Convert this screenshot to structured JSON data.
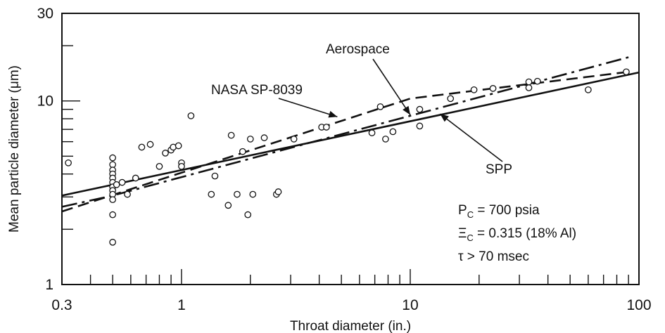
{
  "chart_data": {
    "type": "scatter",
    "title": "",
    "xlabel": "Throat diameter (in.)",
    "ylabel": "Mean particle diameter (μm)",
    "xscale": "log",
    "yscale": "log",
    "xlim": [
      0.3,
      100
    ],
    "ylim": [
      1,
      30
    ],
    "x_tick_labels": [
      {
        "value": 0.3,
        "label": "0.3"
      },
      {
        "value": 1,
        "label": "1"
      },
      {
        "value": 10,
        "label": "10"
      },
      {
        "value": 100,
        "label": "100"
      }
    ],
    "y_tick_labels": [
      {
        "value": 1,
        "label": "1"
      },
      {
        "value": 10,
        "label": "10"
      },
      {
        "value": 30,
        "label": "30"
      }
    ],
    "grid": false,
    "points": [
      {
        "x": 0.32,
        "y": 4.6
      },
      {
        "x": 0.5,
        "y": 4.9
      },
      {
        "x": 0.5,
        "y": 4.5
      },
      {
        "x": 0.5,
        "y": 4.2
      },
      {
        "x": 0.5,
        "y": 4.0
      },
      {
        "x": 0.5,
        "y": 3.8
      },
      {
        "x": 0.5,
        "y": 3.6
      },
      {
        "x": 0.5,
        "y": 3.4
      },
      {
        "x": 0.5,
        "y": 3.25
      },
      {
        "x": 0.5,
        "y": 3.1
      },
      {
        "x": 0.5,
        "y": 2.9
      },
      {
        "x": 0.5,
        "y": 2.4
      },
      {
        "x": 0.5,
        "y": 1.7
      },
      {
        "x": 0.52,
        "y": 3.5
      },
      {
        "x": 0.55,
        "y": 3.6
      },
      {
        "x": 0.58,
        "y": 3.1
      },
      {
        "x": 0.63,
        "y": 3.8
      },
      {
        "x": 0.67,
        "y": 5.6
      },
      {
        "x": 0.73,
        "y": 5.8
      },
      {
        "x": 0.8,
        "y": 4.4
      },
      {
        "x": 0.85,
        "y": 5.2
      },
      {
        "x": 0.9,
        "y": 5.4
      },
      {
        "x": 0.92,
        "y": 5.6
      },
      {
        "x": 0.97,
        "y": 5.7
      },
      {
        "x": 1.0,
        "y": 4.6
      },
      {
        "x": 1.0,
        "y": 4.4
      },
      {
        "x": 1.1,
        "y": 8.3
      },
      {
        "x": 1.35,
        "y": 3.1
      },
      {
        "x": 1.4,
        "y": 3.9
      },
      {
        "x": 1.6,
        "y": 2.7
      },
      {
        "x": 1.65,
        "y": 6.5
      },
      {
        "x": 1.75,
        "y": 3.1
      },
      {
        "x": 1.85,
        "y": 5.3
      },
      {
        "x": 1.95,
        "y": 2.4
      },
      {
        "x": 2.0,
        "y": 6.2
      },
      {
        "x": 2.05,
        "y": 3.1
      },
      {
        "x": 2.3,
        "y": 6.3
      },
      {
        "x": 2.6,
        "y": 3.1
      },
      {
        "x": 2.65,
        "y": 3.2
      },
      {
        "x": 3.1,
        "y": 6.2
      },
      {
        "x": 4.1,
        "y": 7.2
      },
      {
        "x": 4.3,
        "y": 7.2
      },
      {
        "x": 6.8,
        "y": 6.7
      },
      {
        "x": 7.4,
        "y": 9.3
      },
      {
        "x": 7.8,
        "y": 6.2
      },
      {
        "x": 8.4,
        "y": 6.8
      },
      {
        "x": 11.0,
        "y": 9.0
      },
      {
        "x": 11.0,
        "y": 7.3
      },
      {
        "x": 15.0,
        "y": 10.3
      },
      {
        "x": 19.0,
        "y": 11.5
      },
      {
        "x": 23.0,
        "y": 11.7
      },
      {
        "x": 33.0,
        "y": 11.8
      },
      {
        "x": 33.0,
        "y": 12.7
      },
      {
        "x": 36.0,
        "y": 12.8
      },
      {
        "x": 60.0,
        "y": 11.5
      },
      {
        "x": 88.0,
        "y": 14.4
      }
    ],
    "series": [
      {
        "name": "SPP",
        "style": "solid",
        "x": [
          0.3,
          100
        ],
        "y": [
          3.05,
          14.3
        ]
      },
      {
        "name": "Aerospace",
        "style": "long-dash-dot",
        "x": [
          0.3,
          0.5,
          90
        ],
        "y": [
          2.65,
          3.05,
          17.3
        ]
      },
      {
        "name": "NASA SP-8039",
        "style": "dashed",
        "x": [
          0.3,
          10,
          90
        ],
        "y": [
          2.5,
          10.3,
          14.4
        ]
      }
    ],
    "annotations": [
      {
        "text": "NASA SP-8039",
        "arrow_to": {
          "x": 4.8,
          "y": 8.2
        }
      },
      {
        "text": "Aerospace",
        "arrow_to": {
          "x": 10,
          "y": 8.4
        }
      },
      {
        "text": "SPP",
        "arrow_to": {
          "x": 13.5,
          "y": 8.5
        }
      }
    ],
    "conditions": [
      {
        "main": "P",
        "sub": "C",
        "rest": " = 700 psia"
      },
      {
        "main": "Ξ",
        "sub": "C",
        "rest": " = 0.315 (18% Al)"
      },
      {
        "main": "τ > 70 msec",
        "sub": "",
        "rest": ""
      }
    ]
  }
}
